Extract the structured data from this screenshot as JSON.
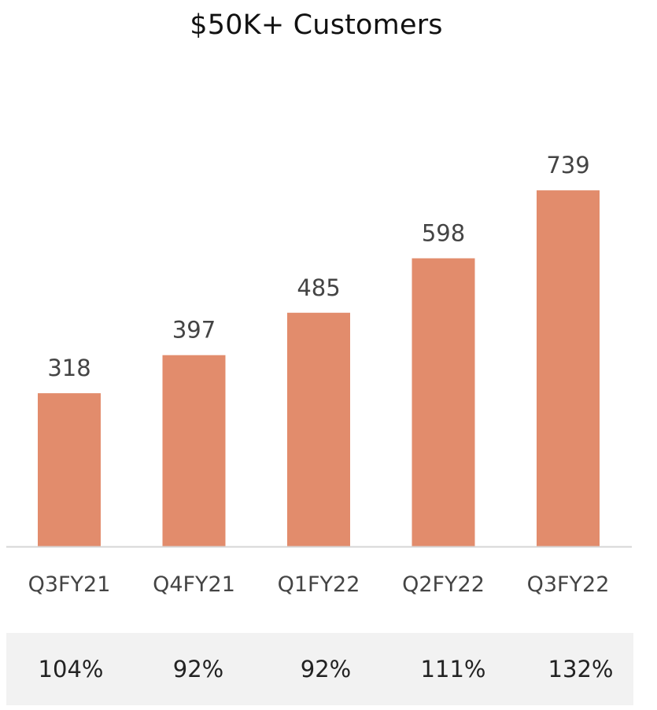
{
  "chart_data": {
    "type": "bar",
    "title": "$50K+ Customers",
    "categories": [
      "Q3FY21",
      "Q4FY21",
      "Q1FY22",
      "Q2FY22",
      "Q3FY22"
    ],
    "values": [
      318,
      397,
      485,
      598,
      739
    ],
    "data_labels": [
      "318",
      "397",
      "485",
      "598",
      "739"
    ],
    "growth_labels": [
      "104%",
      "92%",
      "92%",
      "111%",
      "132%"
    ],
    "xlabel": "",
    "ylabel": "",
    "ylim": [
      0,
      1134
    ],
    "grid": false,
    "legend": "none",
    "colors": {
      "bar": "#E28C6C",
      "axis": "#d6d6d6",
      "label": "#444444",
      "tick": "#444444",
      "growth_band": "#f2f2f2"
    }
  }
}
